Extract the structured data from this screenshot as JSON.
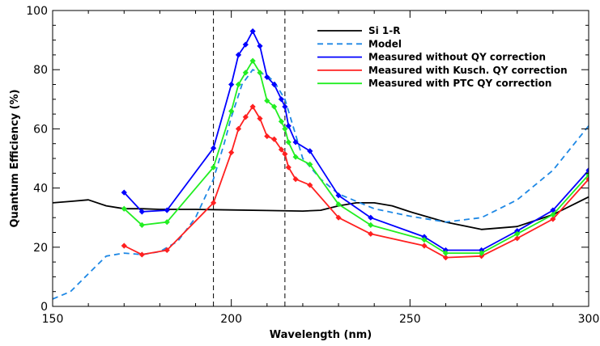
{
  "chart_data": {
    "type": "line",
    "xlabel": "Wavelength (nm)",
    "ylabel": "Quantum Efficiency (%)",
    "xlim": [
      150,
      300
    ],
    "ylim": [
      0,
      100
    ],
    "x_ticks": [
      150,
      200,
      250,
      300
    ],
    "y_ticks": [
      0,
      20,
      40,
      60,
      80,
      100
    ],
    "x_tick_labels": [
      "150",
      "200",
      "250",
      "300"
    ],
    "y_tick_labels": [
      "0",
      "20",
      "40",
      "60",
      "80",
      "100"
    ],
    "vertical_reference_lines": [
      195,
      215
    ],
    "legend_position": "top-right",
    "grid": false,
    "series": [
      {
        "name": "Si 1-R",
        "color": "#000000",
        "dash": "solid",
        "markers": false,
        "x": [
          150,
          155,
          160,
          165,
          170,
          175,
          180,
          190,
          200,
          210,
          220,
          225,
          230,
          235,
          240,
          245,
          250,
          260,
          270,
          280,
          290,
          300
        ],
        "y": [
          35,
          35.5,
          36,
          34,
          33,
          33,
          32.8,
          32.8,
          32.6,
          32.4,
          32.2,
          32.5,
          34,
          35,
          35,
          34,
          32,
          28.5,
          26,
          27,
          31,
          37
        ]
      },
      {
        "name": "Model",
        "color": "#1e88e5",
        "dash": "dashed",
        "markers": false,
        "x": [
          150,
          155,
          160,
          165,
          170,
          175,
          180,
          185,
          190,
          195,
          198,
          200,
          203,
          206,
          210,
          212,
          215,
          218,
          220,
          225,
          230,
          240,
          250,
          260,
          270,
          280,
          290,
          300
        ],
        "y": [
          2.5,
          5,
          11,
          17,
          18,
          17.5,
          18.5,
          22,
          30,
          43,
          55,
          64,
          75,
          80,
          78,
          76,
          70,
          58,
          50,
          43,
          38,
          33,
          30.5,
          28.5,
          30,
          36,
          46,
          61
        ]
      },
      {
        "name": "Measured without QY correction",
        "color": "#0000ff",
        "dash": "solid",
        "markers": true,
        "x": [
          170,
          175,
          182,
          195,
          200,
          202,
          204,
          206,
          208,
          210,
          212,
          214,
          215,
          216,
          218,
          222,
          230,
          239,
          254,
          260,
          270,
          280,
          290,
          300
        ],
        "y": [
          38.5,
          32,
          32.5,
          53.5,
          75,
          85,
          88.5,
          93,
          88,
          77.5,
          75,
          70,
          67.5,
          61,
          55.5,
          52.5,
          37.5,
          30,
          23.5,
          19,
          19,
          25.5,
          32.5,
          46
        ]
      },
      {
        "name": "Measured with Kusch. QY correction",
        "color": "#ff2020",
        "dash": "solid",
        "markers": true,
        "x": [
          170,
          175,
          182,
          195,
          200,
          202,
          204,
          206,
          208,
          210,
          212,
          214,
          215,
          216,
          218,
          222,
          230,
          239,
          254,
          260,
          270,
          280,
          290,
          300
        ],
        "y": [
          20.5,
          17.5,
          19,
          35,
          52,
          60,
          64,
          67.5,
          63.5,
          57.5,
          56.5,
          53,
          51.5,
          47,
          43,
          41,
          30,
          24.5,
          20.5,
          16.5,
          17,
          23,
          29.5,
          43
        ]
      },
      {
        "name": "Measured with PTC QY correction",
        "color": "#22ee22",
        "dash": "solid",
        "markers": true,
        "x": [
          170,
          175,
          182,
          195,
          200,
          202,
          204,
          206,
          208,
          210,
          212,
          214,
          215,
          216,
          218,
          222,
          230,
          239,
          254,
          260,
          270,
          280,
          290,
          300
        ],
        "y": [
          33,
          27.5,
          28.5,
          47,
          66,
          75,
          79,
          83,
          79,
          69.5,
          67.5,
          62.5,
          60,
          55.5,
          50.5,
          48,
          34.5,
          27.5,
          22.5,
          18,
          18,
          24.5,
          31,
          44.5
        ]
      }
    ]
  }
}
